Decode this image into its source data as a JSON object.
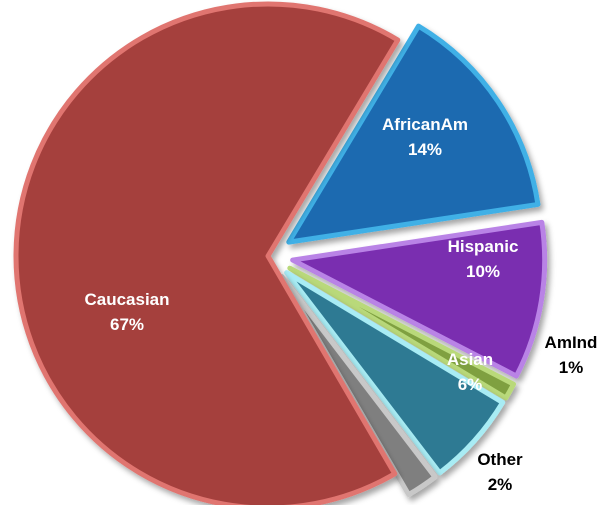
{
  "chart_data": {
    "type": "pie",
    "title": "",
    "legend": "none",
    "slices": [
      {
        "name": "AfricanAm",
        "value": 14,
        "label": "14%",
        "color": "#1a6bb0",
        "edge": "#3fb0e6",
        "exploded": true,
        "label_position": "inside",
        "label_color": "#ffffff"
      },
      {
        "name": "Hispanic",
        "value": 10,
        "label": "10%",
        "color": "#7a2db0",
        "edge": "#b983e6",
        "exploded": true,
        "label_position": "inside",
        "label_color": "#ffffff"
      },
      {
        "name": "AmInd",
        "value": 1,
        "label": "1%",
        "color": "#7fa040",
        "edge": "#b9d97a",
        "exploded": true,
        "label_position": "outside",
        "label_color": "#000000"
      },
      {
        "name": "Asian",
        "value": 6,
        "label": "6%",
        "color": "#2f7a93",
        "edge": "#a8ecf4",
        "exploded": true,
        "label_position": "inside",
        "label_color": "#ffffff"
      },
      {
        "name": "Other",
        "value": 2,
        "label": "2%",
        "color": "#7f7f7f",
        "edge": "#c8c8c8",
        "exploded": true,
        "label_position": "outside",
        "label_color": "#000000"
      },
      {
        "name": "Caucasian",
        "value": 67,
        "label": "67%",
        "color": "#a5403d",
        "edge": "#e07470",
        "exploded": false,
        "label_position": "inside",
        "label_color": "#ffffff"
      }
    ]
  }
}
